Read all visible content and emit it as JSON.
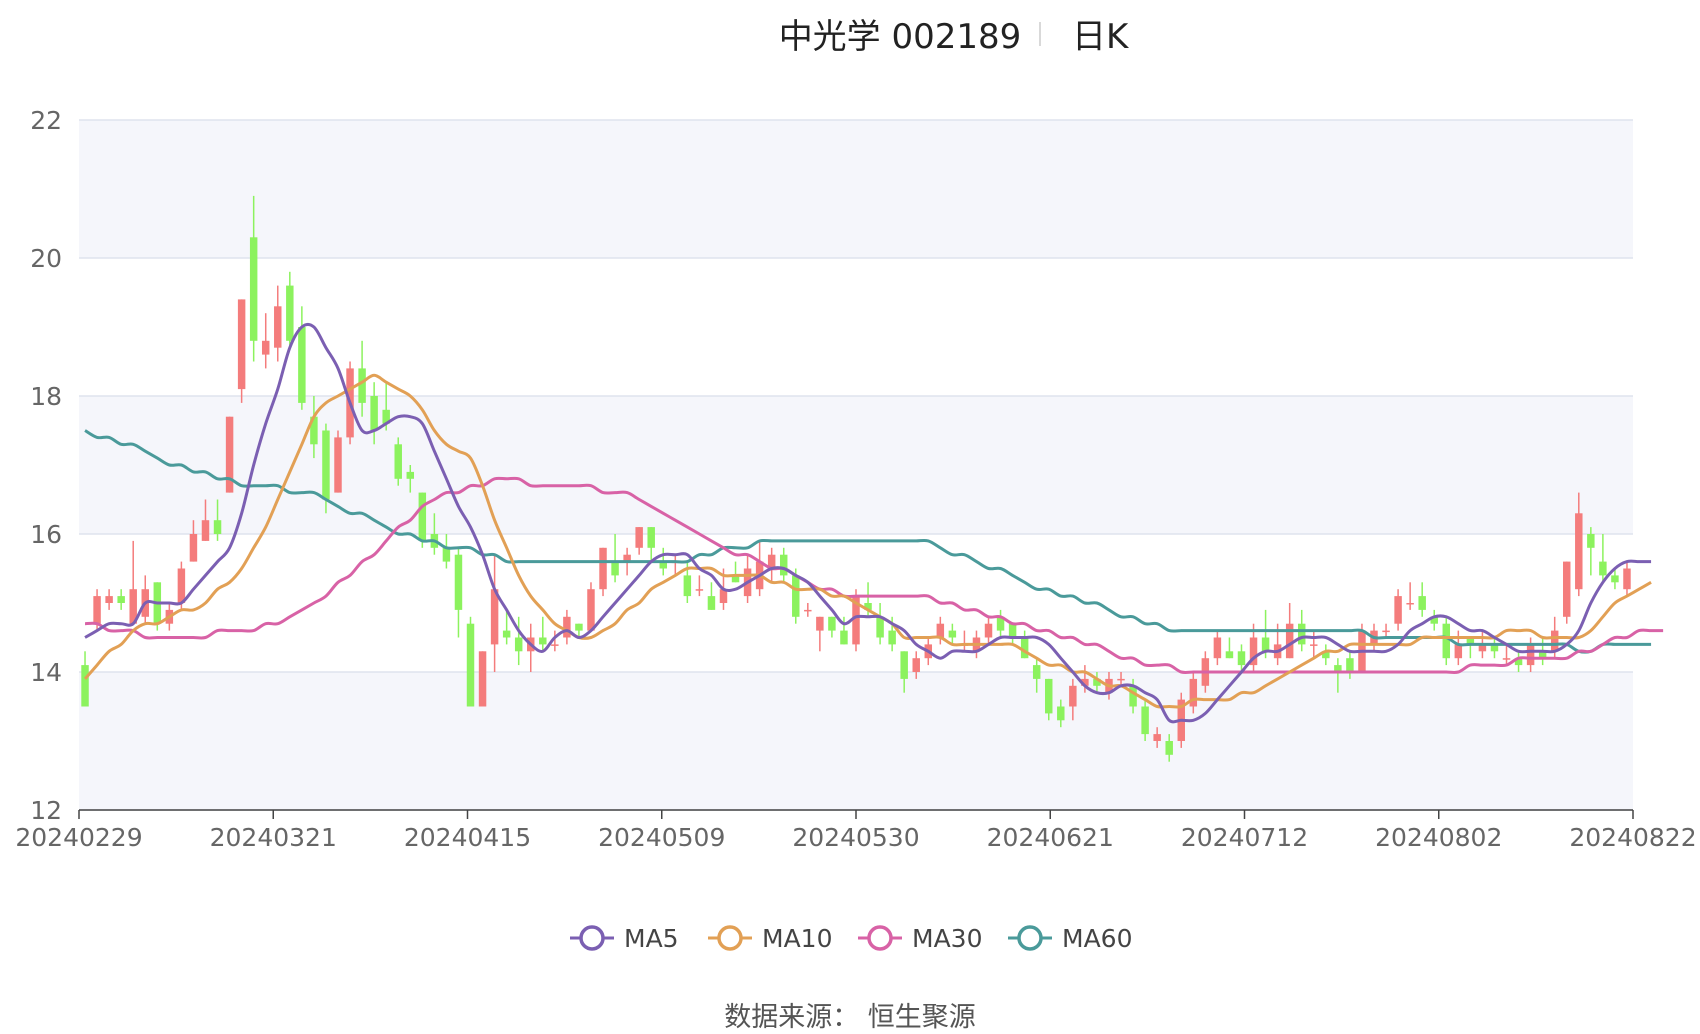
{
  "header": {
    "title": "中光学 002189",
    "subtitle": "日K"
  },
  "footer": {
    "source": "数据来源： 恒生聚源"
  },
  "colors": {
    "up": "#f47c7c",
    "down": "#8cf25e",
    "ma5": "#7b5fb2",
    "ma10": "#e2a055",
    "ma30": "#d862a6",
    "ma60": "#4a9a9a",
    "grid": "#dfe3ee",
    "band": "#f5f6fb",
    "axis": "#444444"
  },
  "chart_data": {
    "type": "candlestick",
    "title": "中光学 002189",
    "subtitle": "日K",
    "ylim": [
      12,
      22
    ],
    "yticks": [
      12,
      14,
      16,
      18,
      20,
      22
    ],
    "xticks": [
      "20240229",
      "20240321",
      "20240415",
      "20240509",
      "20240530",
      "20240621",
      "20240712",
      "20240802",
      "20240822"
    ],
    "grid": true,
    "legend": {
      "position": "bottom",
      "items": [
        "MA5",
        "MA10",
        "MA30",
        "MA60"
      ]
    },
    "candles": [
      [
        14.1,
        13.5,
        14.3,
        13.5
      ],
      [
        14.7,
        15.1,
        15.2,
        14.6
      ],
      [
        15.0,
        15.1,
        15.2,
        14.9
      ],
      [
        15.1,
        15.0,
        15.2,
        14.9
      ],
      [
        14.7,
        15.2,
        15.9,
        14.7
      ],
      [
        14.8,
        15.2,
        15.4,
        14.7
      ],
      [
        15.3,
        14.7,
        15.3,
        14.6
      ],
      [
        14.7,
        14.9,
        15.0,
        14.6
      ],
      [
        15.0,
        15.5,
        15.6,
        14.9
      ],
      [
        15.6,
        16.0,
        16.2,
        15.6
      ],
      [
        15.9,
        16.2,
        16.5,
        15.9
      ],
      [
        16.2,
        16.0,
        16.5,
        15.9
      ],
      [
        16.6,
        17.7,
        17.7,
        16.6
      ],
      [
        18.1,
        19.4,
        19.4,
        17.9
      ],
      [
        20.3,
        18.8,
        20.9,
        18.5
      ],
      [
        18.6,
        18.8,
        19.2,
        18.4
      ],
      [
        18.7,
        19.3,
        19.6,
        18.5
      ],
      [
        19.6,
        18.8,
        19.8,
        18.7
      ],
      [
        19.0,
        17.9,
        19.3,
        17.8
      ],
      [
        17.7,
        17.3,
        18.0,
        17.1
      ],
      [
        17.5,
        16.5,
        17.6,
        16.3
      ],
      [
        16.6,
        17.4,
        17.5,
        16.6
      ],
      [
        17.4,
        18.4,
        18.5,
        17.3
      ],
      [
        18.4,
        17.9,
        18.8,
        17.7
      ],
      [
        18.0,
        17.5,
        18.2,
        17.3
      ],
      [
        17.8,
        17.6,
        18.2,
        17.5
      ],
      [
        17.3,
        16.8,
        17.4,
        16.7
      ],
      [
        16.9,
        16.8,
        17.0,
        16.6
      ],
      [
        16.6,
        15.9,
        16.6,
        15.8
      ],
      [
        16.0,
        15.8,
        16.3,
        15.7
      ],
      [
        15.8,
        15.6,
        16.0,
        15.5
      ],
      [
        15.7,
        14.9,
        15.8,
        14.5
      ],
      [
        14.7,
        13.5,
        14.8,
        13.5
      ],
      [
        13.5,
        14.3,
        14.3,
        13.5
      ],
      [
        14.4,
        15.2,
        15.7,
        14.0
      ],
      [
        14.6,
        14.5,
        14.9,
        14.4
      ],
      [
        14.5,
        14.3,
        14.8,
        14.1
      ],
      [
        14.3,
        14.5,
        14.7,
        14.0
      ],
      [
        14.5,
        14.4,
        14.8,
        14.3
      ],
      [
        14.4,
        14.4,
        14.6,
        14.3
      ],
      [
        14.5,
        14.8,
        14.9,
        14.4
      ],
      [
        14.7,
        14.6,
        14.7,
        14.5
      ],
      [
        14.6,
        15.2,
        15.3,
        14.6
      ],
      [
        15.2,
        15.8,
        15.8,
        15.1
      ],
      [
        15.6,
        15.4,
        16.0,
        15.3
      ],
      [
        15.6,
        15.7,
        15.8,
        15.4
      ],
      [
        15.8,
        16.1,
        16.1,
        15.7
      ],
      [
        16.1,
        15.8,
        16.1,
        15.6
      ],
      [
        15.6,
        15.5,
        15.8,
        15.4
      ],
      [
        15.6,
        15.6,
        15.7,
        15.4
      ],
      [
        15.4,
        15.1,
        15.6,
        15.0
      ],
      [
        15.2,
        15.2,
        15.4,
        15.1
      ],
      [
        15.1,
        14.9,
        15.3,
        14.9
      ],
      [
        15.0,
        15.2,
        15.5,
        14.9
      ],
      [
        15.4,
        15.3,
        15.6,
        15.3
      ],
      [
        15.1,
        15.5,
        15.7,
        15.0
      ],
      [
        15.2,
        15.6,
        15.9,
        15.1
      ],
      [
        15.5,
        15.7,
        15.8,
        15.3
      ],
      [
        15.7,
        15.4,
        15.8,
        15.3
      ],
      [
        15.4,
        14.8,
        15.5,
        14.7
      ],
      [
        14.9,
        14.9,
        15.0,
        14.8
      ],
      [
        14.6,
        14.8,
        14.8,
        14.3
      ],
      [
        14.8,
        14.6,
        14.8,
        14.5
      ],
      [
        14.6,
        14.4,
        14.8,
        14.4
      ],
      [
        14.4,
        15.1,
        15.2,
        14.3
      ],
      [
        15.0,
        14.9,
        15.3,
        14.8
      ],
      [
        14.8,
        14.5,
        15.0,
        14.4
      ],
      [
        14.6,
        14.4,
        14.8,
        14.3
      ],
      [
        14.3,
        13.9,
        14.3,
        13.7
      ],
      [
        14.0,
        14.2,
        14.3,
        13.9
      ],
      [
        14.2,
        14.4,
        14.5,
        14.1
      ],
      [
        14.5,
        14.7,
        14.8,
        14.4
      ],
      [
        14.6,
        14.5,
        14.7,
        14.4
      ],
      [
        14.4,
        14.4,
        14.6,
        14.3
      ],
      [
        14.3,
        14.5,
        14.6,
        14.2
      ],
      [
        14.5,
        14.7,
        14.8,
        14.4
      ],
      [
        14.8,
        14.6,
        14.9,
        14.5
      ],
      [
        14.7,
        14.5,
        14.7,
        14.4
      ],
      [
        14.5,
        14.2,
        14.6,
        14.2
      ],
      [
        14.1,
        13.9,
        14.2,
        13.7
      ],
      [
        13.9,
        13.4,
        13.9,
        13.3
      ],
      [
        13.5,
        13.3,
        13.6,
        13.2
      ],
      [
        13.5,
        13.8,
        13.9,
        13.3
      ],
      [
        13.8,
        13.9,
        14.1,
        13.7
      ],
      [
        13.9,
        13.8,
        14.0,
        13.7
      ],
      [
        13.7,
        13.9,
        14.0,
        13.6
      ],
      [
        13.9,
        13.9,
        14.0,
        13.8
      ],
      [
        13.8,
        13.5,
        13.9,
        13.4
      ],
      [
        13.5,
        13.1,
        13.6,
        13.0
      ],
      [
        13.0,
        13.1,
        13.2,
        12.9
      ],
      [
        13.0,
        12.8,
        13.1,
        12.7
      ],
      [
        13.0,
        13.6,
        13.7,
        12.9
      ],
      [
        13.5,
        13.9,
        14.0,
        13.4
      ],
      [
        13.8,
        14.2,
        14.3,
        13.7
      ],
      [
        14.2,
        14.5,
        14.6,
        14.1
      ],
      [
        14.3,
        14.2,
        14.5,
        14.2
      ],
      [
        14.3,
        14.1,
        14.4,
        14.0
      ],
      [
        14.1,
        14.5,
        14.7,
        14.0
      ],
      [
        14.5,
        14.3,
        14.9,
        14.2
      ],
      [
        14.2,
        14.4,
        14.7,
        14.1
      ],
      [
        14.2,
        14.7,
        15.0,
        14.2
      ],
      [
        14.7,
        14.4,
        14.9,
        14.3
      ],
      [
        14.4,
        14.4,
        14.6,
        14.2
      ],
      [
        14.3,
        14.2,
        14.4,
        14.1
      ],
      [
        14.1,
        14.0,
        14.2,
        13.7
      ],
      [
        14.2,
        14.0,
        14.3,
        13.9
      ],
      [
        14.0,
        14.6,
        14.7,
        14.0
      ],
      [
        14.4,
        14.6,
        14.7,
        14.3
      ],
      [
        14.6,
        14.6,
        14.7,
        14.5
      ],
      [
        14.7,
        15.1,
        15.2,
        14.6
      ],
      [
        15.0,
        15.0,
        15.3,
        14.9
      ],
      [
        15.1,
        14.9,
        15.3,
        14.8
      ],
      [
        14.8,
        14.7,
        14.9,
        14.6
      ],
      [
        14.7,
        14.2,
        14.8,
        14.1
      ],
      [
        14.2,
        14.4,
        14.6,
        14.1
      ],
      [
        14.5,
        14.4,
        14.5,
        14.2
      ],
      [
        14.3,
        14.4,
        14.6,
        14.2
      ],
      [
        14.4,
        14.3,
        14.5,
        14.2
      ],
      [
        14.2,
        14.2,
        14.4,
        14.1
      ],
      [
        14.2,
        14.1,
        14.3,
        14.0
      ],
      [
        14.1,
        14.4,
        14.5,
        14.0
      ],
      [
        14.3,
        14.2,
        14.5,
        14.1
      ],
      [
        14.3,
        14.6,
        14.8,
        14.2
      ],
      [
        14.8,
        15.6,
        15.6,
        14.7
      ],
      [
        15.2,
        16.3,
        16.6,
        15.1
      ],
      [
        16.0,
        15.8,
        16.1,
        15.4
      ],
      [
        15.6,
        15.4,
        16.0,
        15.3
      ],
      [
        15.4,
        15.3,
        15.5,
        15.2
      ],
      [
        15.2,
        15.5,
        15.6,
        15.1
      ]
    ],
    "ma_labels": [
      "MA5",
      "MA10",
      "MA30",
      "MA60"
    ],
    "ma": {
      "MA5": [
        14.5,
        14.6,
        14.7,
        14.7,
        14.7,
        15.0,
        15.0,
        15.0,
        15.0,
        15.2,
        15.4,
        15.6,
        15.8,
        16.3,
        17.0,
        17.6,
        18.1,
        18.7,
        19.0,
        19.0,
        18.7,
        18.4,
        17.9,
        17.5,
        17.5,
        17.6,
        17.7,
        17.7,
        17.6,
        17.2,
        16.8,
        16.4,
        16.1,
        15.7,
        15.2,
        14.9,
        14.6,
        14.4,
        14.3,
        14.5,
        14.6,
        14.5,
        14.6,
        14.8,
        15.0,
        15.2,
        15.4,
        15.6,
        15.7,
        15.7,
        15.7,
        15.5,
        15.4,
        15.2,
        15.2,
        15.3,
        15.4,
        15.5,
        15.5,
        15.4,
        15.3,
        15.1,
        14.9,
        14.7,
        14.8,
        14.8,
        14.8,
        14.7,
        14.6,
        14.4,
        14.3,
        14.2,
        14.3,
        14.3,
        14.3,
        14.4,
        14.5,
        14.5,
        14.5,
        14.5,
        14.4,
        14.2,
        14.0,
        13.8,
        13.7,
        13.7,
        13.8,
        13.8,
        13.7,
        13.6,
        13.3,
        13.3,
        13.3,
        13.4,
        13.6,
        13.8,
        14.0,
        14.2,
        14.3,
        14.3,
        14.4,
        14.5,
        14.5,
        14.5,
        14.4,
        14.3,
        14.3,
        14.3,
        14.3,
        14.4,
        14.6,
        14.7,
        14.8,
        14.8,
        14.7,
        14.6,
        14.6,
        14.5,
        14.4,
        14.3,
        14.3,
        14.3,
        14.3,
        14.4,
        14.6,
        15.0,
        15.3,
        15.5,
        15.6,
        15.6,
        15.6
      ],
      "MA10": [
        13.9,
        14.1,
        14.3,
        14.4,
        14.6,
        14.7,
        14.7,
        14.8,
        14.9,
        14.9,
        15.0,
        15.2,
        15.3,
        15.5,
        15.8,
        16.1,
        16.5,
        16.9,
        17.3,
        17.7,
        17.9,
        18.0,
        18.1,
        18.2,
        18.3,
        18.2,
        18.1,
        18.0,
        17.8,
        17.5,
        17.3,
        17.2,
        17.1,
        16.7,
        16.2,
        15.8,
        15.4,
        15.1,
        14.9,
        14.7,
        14.6,
        14.5,
        14.5,
        14.6,
        14.7,
        14.9,
        15.0,
        15.2,
        15.3,
        15.4,
        15.5,
        15.5,
        15.5,
        15.4,
        15.4,
        15.4,
        15.4,
        15.3,
        15.3,
        15.2,
        15.2,
        15.2,
        15.1,
        15.1,
        15.0,
        14.9,
        14.8,
        14.7,
        14.5,
        14.5,
        14.5,
        14.5,
        14.4,
        14.4,
        14.4,
        14.4,
        14.4,
        14.4,
        14.3,
        14.2,
        14.1,
        14.1,
        14.0,
        14.0,
        13.9,
        13.8,
        13.8,
        13.7,
        13.6,
        13.5,
        13.5,
        13.5,
        13.6,
        13.6,
        13.6,
        13.6,
        13.7,
        13.7,
        13.8,
        13.9,
        14.0,
        14.1,
        14.2,
        14.3,
        14.3,
        14.4,
        14.4,
        14.4,
        14.4,
        14.4,
        14.4,
        14.5,
        14.5,
        14.5,
        14.5,
        14.5,
        14.5,
        14.5,
        14.6,
        14.6,
        14.6,
        14.5,
        14.5,
        14.5,
        14.5,
        14.6,
        14.8,
        15.0,
        15.1,
        15.2,
        15.3
      ],
      "MA30": [
        14.7,
        14.7,
        14.6,
        14.6,
        14.6,
        14.5,
        14.5,
        14.5,
        14.5,
        14.5,
        14.5,
        14.6,
        14.6,
        14.6,
        14.6,
        14.7,
        14.7,
        14.8,
        14.9,
        15.0,
        15.1,
        15.3,
        15.4,
        15.6,
        15.7,
        15.9,
        16.1,
        16.2,
        16.4,
        16.5,
        16.6,
        16.6,
        16.7,
        16.7,
        16.8,
        16.8,
        16.8,
        16.7,
        16.7,
        16.7,
        16.7,
        16.7,
        16.7,
        16.6,
        16.6,
        16.6,
        16.5,
        16.4,
        16.3,
        16.2,
        16.1,
        16.0,
        15.9,
        15.8,
        15.7,
        15.7,
        15.6,
        15.5,
        15.5,
        15.4,
        15.3,
        15.2,
        15.2,
        15.1,
        15.1,
        15.1,
        15.1,
        15.1,
        15.1,
        15.1,
        15.1,
        15.0,
        15.0,
        14.9,
        14.9,
        14.8,
        14.8,
        14.7,
        14.7,
        14.6,
        14.6,
        14.5,
        14.5,
        14.4,
        14.4,
        14.3,
        14.2,
        14.2,
        14.1,
        14.1,
        14.1,
        14.0,
        14.0,
        14.0,
        14.0,
        14.0,
        14.0,
        14.0,
        14.0,
        14.0,
        14.0,
        14.0,
        14.0,
        14.0,
        14.0,
        14.0,
        14.0,
        14.0,
        14.0,
        14.0,
        14.0,
        14.0,
        14.0,
        14.0,
        14.0,
        14.1,
        14.1,
        14.1,
        14.1,
        14.2,
        14.2,
        14.2,
        14.2,
        14.2,
        14.3,
        14.3,
        14.4,
        14.5,
        14.5,
        14.6,
        14.6,
        14.6
      ],
      "MA60": [
        17.5,
        17.4,
        17.4,
        17.3,
        17.3,
        17.2,
        17.1,
        17.0,
        17.0,
        16.9,
        16.9,
        16.8,
        16.8,
        16.7,
        16.7,
        16.7,
        16.7,
        16.6,
        16.6,
        16.6,
        16.5,
        16.4,
        16.3,
        16.3,
        16.2,
        16.1,
        16.0,
        16.0,
        15.9,
        15.9,
        15.8,
        15.8,
        15.8,
        15.7,
        15.7,
        15.6,
        15.6,
        15.6,
        15.6,
        15.6,
        15.6,
        15.6,
        15.6,
        15.6,
        15.6,
        15.6,
        15.6,
        15.6,
        15.6,
        15.6,
        15.6,
        15.7,
        15.7,
        15.8,
        15.8,
        15.8,
        15.9,
        15.9,
        15.9,
        15.9,
        15.9,
        15.9,
        15.9,
        15.9,
        15.9,
        15.9,
        15.9,
        15.9,
        15.9,
        15.9,
        15.9,
        15.8,
        15.7,
        15.7,
        15.6,
        15.5,
        15.5,
        15.4,
        15.3,
        15.2,
        15.2,
        15.1,
        15.1,
        15.0,
        15.0,
        14.9,
        14.8,
        14.8,
        14.7,
        14.7,
        14.6,
        14.6,
        14.6,
        14.6,
        14.6,
        14.6,
        14.6,
        14.6,
        14.6,
        14.6,
        14.6,
        14.6,
        14.6,
        14.6,
        14.6,
        14.6,
        14.6,
        14.5,
        14.5,
        14.5,
        14.5,
        14.5,
        14.5,
        14.5,
        14.4,
        14.4,
        14.4,
        14.4,
        14.4,
        14.4,
        14.4,
        14.4,
        14.4,
        14.4,
        14.3,
        14.3,
        14.4,
        14.4,
        14.4,
        14.4,
        14.4
      ]
    }
  }
}
